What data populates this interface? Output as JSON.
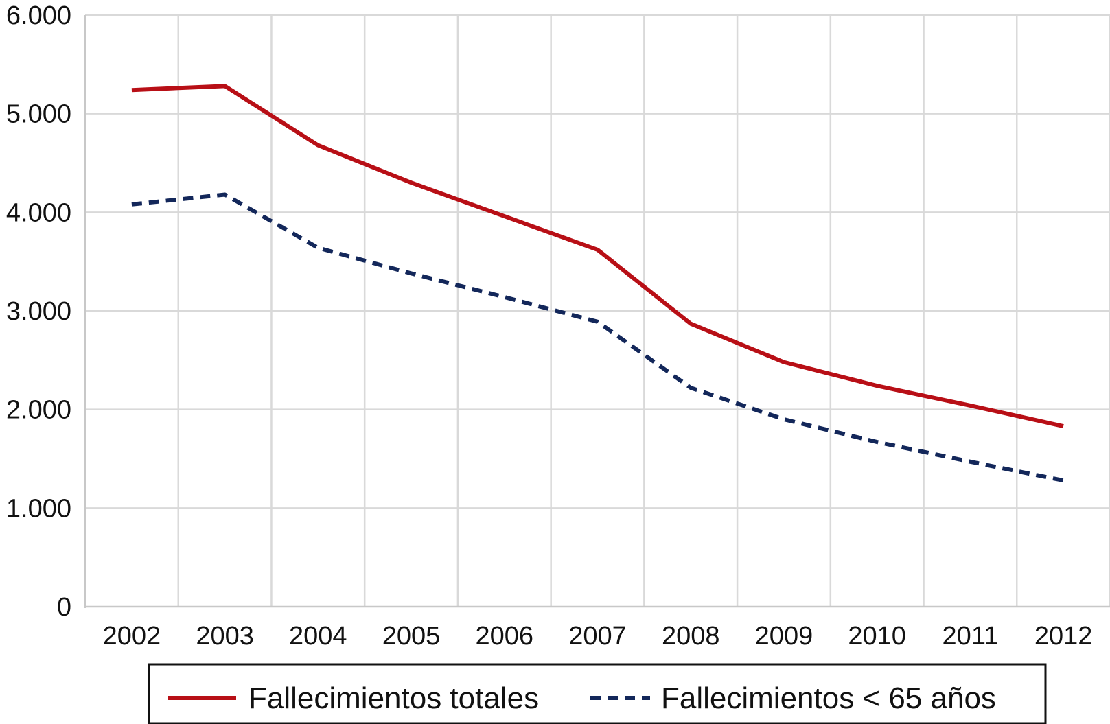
{
  "chart_data": {
    "type": "line",
    "title": "",
    "xlabel": "",
    "ylabel": "",
    "categories": [
      "2002",
      "2003",
      "2004",
      "2005",
      "2006",
      "2007",
      "2008",
      "2009",
      "2010",
      "2011",
      "2012"
    ],
    "ylim": [
      0,
      6000
    ],
    "yticks": [
      0,
      1000,
      2000,
      3000,
      4000,
      5000,
      6000
    ],
    "ytick_labels": [
      "0",
      "1.000",
      "2.000",
      "3.000",
      "4.000",
      "5.000",
      "6.000"
    ],
    "grid": true,
    "legend_position": "bottom",
    "series": [
      {
        "name": "Fallecimientos totales",
        "values": [
          5240,
          5280,
          4680,
          4300,
          3960,
          3620,
          2870,
          2480,
          2240,
          2040,
          1830
        ],
        "color": "#b80f16",
        "style": "solid"
      },
      {
        "name": "Fallecimientos < 65 años",
        "values": [
          4080,
          4180,
          3640,
          3380,
          3140,
          2890,
          2220,
          1900,
          1670,
          1470,
          1280
        ],
        "color": "#13275a",
        "style": "dashed"
      }
    ],
    "colors": {
      "grid": "#d9d9d9",
      "axis": "#c8c8c8",
      "legend_border": "#111111"
    }
  }
}
